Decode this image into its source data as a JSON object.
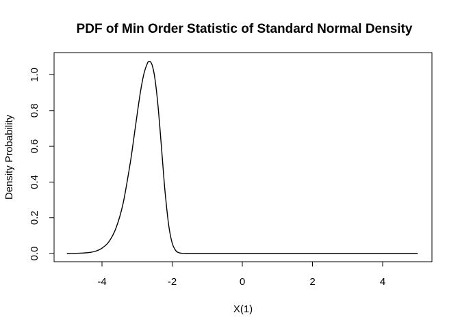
{
  "chart_data": {
    "type": "line",
    "title": "PDF of Min Order Statistic of Standard Normal Density",
    "xlabel": "X(1)",
    "ylabel": "Density Probability",
    "xlim": [
      -5,
      5
    ],
    "ylim": [
      0,
      1.08
    ],
    "x_ticks": [
      -4,
      -2,
      0,
      2,
      4
    ],
    "x_tick_labels": [
      "-4",
      "-2",
      "0",
      "2",
      "4"
    ],
    "y_ticks": [
      0,
      0.2,
      0.4,
      0.6,
      0.8,
      1.0
    ],
    "y_tick_labels": [
      "0.0",
      "0.2",
      "0.4",
      "0.6",
      "0.8",
      "1.0"
    ],
    "grid": false,
    "series": [
      {
        "color": "#000000",
        "x": [
          -5.0,
          -4.6,
          -4.4,
          -4.2,
          -4.0,
          -3.8,
          -3.6,
          -3.4,
          -3.2,
          -3.1,
          -3.0,
          -2.9,
          -2.8,
          -2.7,
          -2.65,
          -2.6,
          -2.55,
          -2.5,
          -2.45,
          -2.4,
          -2.35,
          -2.3,
          -2.25,
          -2.2,
          -2.1,
          -2.0,
          -1.9,
          -1.8,
          -1.7,
          -1.6,
          -1.4,
          0.0,
          2.0,
          4.0,
          5.0
        ],
        "y": [
          0.0,
          0.002,
          0.005,
          0.012,
          0.03,
          0.067,
          0.143,
          0.279,
          0.5,
          0.635,
          0.776,
          0.909,
          1.01,
          1.067,
          1.075,
          1.068,
          1.04,
          0.99,
          0.915,
          0.82,
          0.705,
          0.582,
          0.457,
          0.34,
          0.16,
          0.059,
          0.017,
          0.004,
          0.001,
          0.0,
          0.0,
          0.0,
          0.0,
          0.0,
          0.0
        ]
      }
    ]
  }
}
